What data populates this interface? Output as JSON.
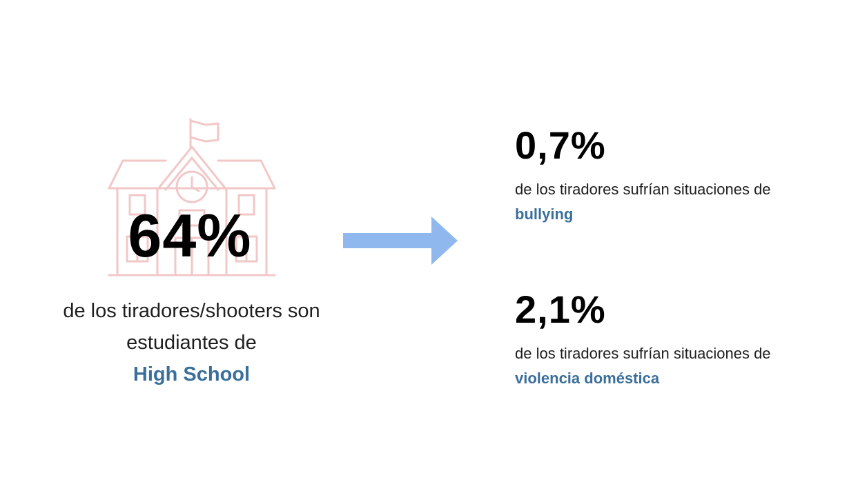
{
  "colors": {
    "highlight": "#3a6f9b",
    "arrow": "#8fb8ee",
    "icon_outline": "#f2c7c7"
  },
  "left": {
    "icon": "school-building-icon",
    "stat": "64%",
    "caption_line1": "de los tiradores/shooters son",
    "caption_line2": "estudiantes de",
    "highlight": "High School"
  },
  "arrow_icon": "right-arrow-icon",
  "right": {
    "items": [
      {
        "stat": "0,7%",
        "desc": "de los tiradores sufrían situaciones de",
        "highlight": "bullying"
      },
      {
        "stat": "2,1%",
        "desc": "de los tiradores sufrían situaciones de",
        "highlight": "violencia doméstica"
      }
    ]
  }
}
